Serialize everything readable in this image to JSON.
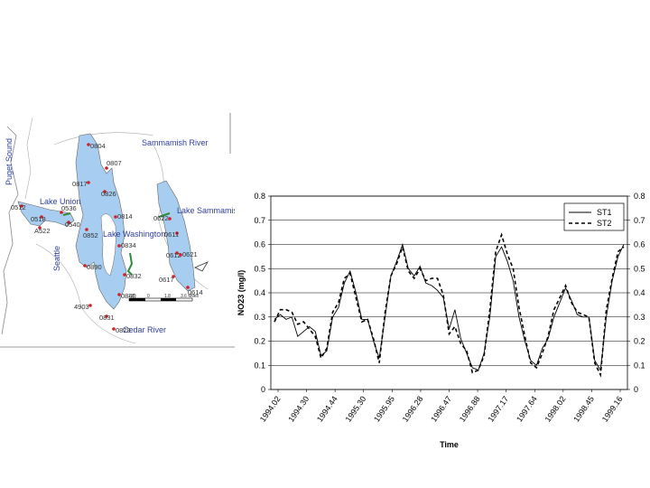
{
  "map": {
    "water_color": "#a7cdf0",
    "labels": {
      "puget_sound": "Puget Sound",
      "sammamish_river": "Sammamish River",
      "lake_union": "Lake Union",
      "lake_washington": "Lake Washington",
      "lake_sammamish": "Lake Sammamish",
      "seattle": "Seattle",
      "cedar_river": "Cedar River",
      "scale_0": "0",
      "scale_1": "1.8",
      "scale_2": "3.6 Miles",
      "scale_left": "1.8"
    },
    "stations": [
      {
        "id": "0804"
      },
      {
        "id": "0807"
      },
      {
        "id": "0817"
      },
      {
        "id": "0826"
      },
      {
        "id": "0512"
      },
      {
        "id": "0536"
      },
      {
        "id": "0518"
      },
      {
        "id": "0540"
      },
      {
        "id": "A522"
      },
      {
        "id": "0852"
      },
      {
        "id": "0814"
      },
      {
        "id": "0834"
      },
      {
        "id": "0890"
      },
      {
        "id": "0832"
      },
      {
        "id": "0840"
      },
      {
        "id": "4903"
      },
      {
        "id": "0831"
      },
      {
        "id": "0829"
      },
      {
        "id": "0622"
      },
      {
        "id": "0611"
      },
      {
        "id": "0612"
      },
      {
        "id": "0621"
      },
      {
        "id": "0617"
      },
      {
        "id": "0614"
      }
    ]
  },
  "chart_data": {
    "type": "line",
    "xlabel": "Time",
    "ylabel": "NO23 (mg/l)",
    "ylim": [
      0,
      0.8
    ],
    "yticks": [
      "0",
      "0.1",
      "0.2",
      "0.3",
      "0.4",
      "0.5",
      "0.6",
      "0.7",
      "0.8"
    ],
    "right_yticks": [
      "0",
      "0.1",
      "0.2",
      "0.3",
      "0.4",
      "0.5",
      "0.6",
      "0.7",
      "0.8"
    ],
    "xticks": [
      "1994.02",
      "1994.30",
      "1994.44",
      "1995.30",
      "1995.95",
      "1996.28",
      "1996.47",
      "1996.88",
      "1997.17",
      "1997.64",
      "1998.02",
      "1998.45",
      "1999.16"
    ],
    "grid": true,
    "legend_position": "top-right",
    "series": [
      {
        "name": "ST1",
        "style": "solid",
        "values": [
          0.29,
          0.31,
          0.29,
          0.3,
          0.22,
          0.24,
          0.26,
          0.24,
          0.14,
          0.16,
          0.3,
          0.34,
          0.44,
          0.49,
          0.4,
          0.29,
          0.29,
          0.2,
          0.13,
          0.3,
          0.47,
          0.53,
          0.6,
          0.5,
          0.47,
          0.51,
          0.44,
          0.43,
          0.41,
          0.38,
          0.25,
          0.33,
          0.21,
          0.15,
          0.09,
          0.08,
          0.15,
          0.3,
          0.55,
          0.59,
          0.53,
          0.45,
          0.3,
          0.2,
          0.12,
          0.1,
          0.17,
          0.21,
          0.3,
          0.36,
          0.42,
          0.37,
          0.31,
          0.3,
          0.3,
          0.12,
          0.08,
          0.3,
          0.45,
          0.55,
          0.6
        ]
      },
      {
        "name": "ST2",
        "style": "dashed",
        "values": [
          0.28,
          0.33,
          0.33,
          0.32,
          0.27,
          0.28,
          0.25,
          0.22,
          0.13,
          0.17,
          0.32,
          0.36,
          0.46,
          0.48,
          0.38,
          0.28,
          0.29,
          0.21,
          0.11,
          0.32,
          0.47,
          0.52,
          0.59,
          0.49,
          0.46,
          0.5,
          0.45,
          0.46,
          0.46,
          0.39,
          0.23,
          0.26,
          0.19,
          0.16,
          0.07,
          0.08,
          0.14,
          0.33,
          0.57,
          0.64,
          0.56,
          0.5,
          0.34,
          0.22,
          0.11,
          0.09,
          0.15,
          0.22,
          0.33,
          0.38,
          0.43,
          0.36,
          0.32,
          0.31,
          0.3,
          0.11,
          0.06,
          0.33,
          0.46,
          0.57,
          0.59
        ]
      }
    ]
  }
}
